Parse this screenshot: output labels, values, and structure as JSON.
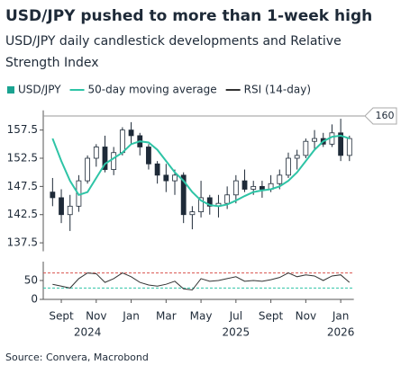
{
  "chart_data": [
    {
      "type": "candlestick",
      "title": "USD/JPY pushed to more than 1-week high",
      "subtitle": "USD/JPY daily candlestick developments and Relative Strength Index",
      "categories": [
        null,
        "Sept",
        null,
        null,
        null,
        "Nov",
        null,
        null,
        null,
        "Jan",
        null,
        null,
        null,
        "Mar",
        null,
        null,
        null,
        "May",
        null,
        null,
        null,
        "Jul",
        null,
        null,
        null,
        "Sept",
        null,
        null,
        null,
        "Nov",
        null,
        null,
        null,
        "Jan",
        null
      ],
      "x_groups": [
        "2024",
        "2025",
        "2026"
      ],
      "series": [
        {
          "name": "USD/JPY",
          "color": "#1aa391",
          "candle_color": "#1e2a38",
          "open": [
            146.5,
            145.5,
            142.5,
            144,
            148.5,
            152.5,
            154.5,
            150.5,
            153.5,
            157.5,
            156.5,
            154.5,
            151.5,
            149.5,
            148.5,
            149.5,
            142.5,
            143,
            145.5,
            144,
            144.5,
            146,
            148.5,
            147,
            147.5,
            147,
            148,
            149.5,
            152.5,
            153,
            155.5,
            156,
            155,
            157,
            153
          ],
          "high": [
            149,
            147,
            146,
            149.5,
            153,
            155,
            156.5,
            154.5,
            158,
            158.9,
            157,
            155,
            152,
            151.5,
            150.5,
            150,
            144,
            148.5,
            146,
            146,
            147.5,
            149.5,
            150.5,
            148.5,
            148.5,
            149.5,
            150.5,
            153.5,
            154,
            156,
            157.5,
            157,
            158.5,
            159.5,
            156.5
          ],
          "low": [
            144,
            141,
            139.6,
            143,
            148,
            151,
            150,
            149.5,
            153,
            155,
            153,
            150.5,
            148,
            146.5,
            146,
            141,
            139.9,
            142,
            142.5,
            142,
            143.5,
            144.5,
            146.5,
            146,
            145.5,
            146.5,
            147,
            149,
            150.5,
            152.5,
            154,
            154.5,
            154.5,
            152,
            152
          ],
          "close": [
            145.5,
            142.5,
            144,
            148.5,
            152.5,
            154.5,
            150.5,
            153.5,
            157.5,
            156.5,
            154.5,
            151.5,
            149.5,
            148.5,
            149.5,
            142.5,
            143,
            145.5,
            144,
            144.5,
            146,
            148.5,
            147,
            147.5,
            147,
            148,
            149.5,
            152.5,
            153,
            155.5,
            156,
            155,
            157,
            153,
            156
          ]
        },
        {
          "name": "50-day moving average",
          "color": "#2ec4a6",
          "values": [
            156,
            152,
            148.5,
            146,
            146.5,
            149,
            151.5,
            152.5,
            153.5,
            155,
            155.5,
            155.3,
            154,
            152,
            150,
            148.5,
            146.5,
            145,
            144.2,
            144,
            144.3,
            145,
            145.8,
            146.5,
            146.8,
            147,
            147.5,
            148.5,
            150,
            152,
            154,
            155.5,
            156.3,
            156.5,
            156
          ]
        }
      ],
      "ylim": [
        136,
        161
      ],
      "yticks": [
        137.5,
        142.5,
        147.5,
        152.5,
        157.5
      ],
      "annotations": [
        {
          "value": 160,
          "label": "160"
        }
      ],
      "source": "Source: Convera, Macrobond"
    },
    {
      "type": "line",
      "series": [
        {
          "name": "RSI (14-day)",
          "color": "#333333",
          "values": [
            40,
            35,
            30,
            55,
            70,
            68,
            45,
            55,
            70,
            60,
            45,
            38,
            35,
            40,
            48,
            28,
            25,
            55,
            48,
            50,
            55,
            60,
            48,
            50,
            48,
            52,
            58,
            70,
            60,
            65,
            62,
            50,
            62,
            65,
            45
          ]
        }
      ],
      "ylim": [
        0,
        100
      ],
      "yticks": [
        0,
        50
      ],
      "ref_lines": [
        {
          "value": 70,
          "color": "#d9534f"
        },
        {
          "value": 30,
          "color": "#2ec4a6"
        }
      ]
    }
  ]
}
